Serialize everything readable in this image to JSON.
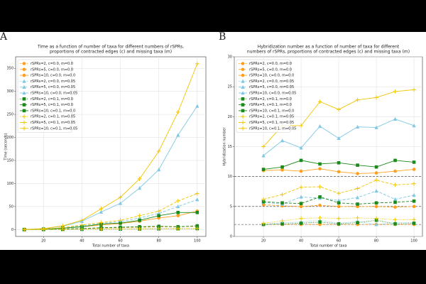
{
  "chart_data": [
    {
      "type": "line",
      "panel_label": "A",
      "title": [
        "Time as a function of number of taxa for different numbers of rSPRs,",
        "proportions of contracted edges (c) and missing taxa (m)"
      ],
      "xlabel": "Total number of taxa",
      "ylabel": "Time (seconds)",
      "x": [
        10,
        20,
        30,
        40,
        50,
        60,
        70,
        80,
        90,
        100
      ],
      "xlim": [
        5.5,
        104.5
      ],
      "xticks": [
        20,
        40,
        60,
        80,
        100
      ],
      "ylim": [
        -15,
        375
      ],
      "yticks": [
        0,
        50,
        100,
        150,
        200,
        250,
        300,
        350
      ],
      "grid": true,
      "legend": "upper left",
      "series": [
        {
          "name": "rSPRs=2, c=0.0, m=0.0",
          "color": "#ff9f1c",
          "marker": "circle",
          "linestyle": "dotted",
          "values": [
            0,
            0,
            0.2,
            0.4,
            0.6,
            0.8,
            1,
            1.2,
            1.4,
            1.6
          ]
        },
        {
          "name": "rSPRs=5, c=0.0, m=0.0",
          "color": "#ff9f1c",
          "marker": "circle",
          "linestyle": "dashed",
          "values": [
            0,
            0.5,
            1,
            2,
            3,
            4,
            5,
            6,
            6,
            7
          ]
        },
        {
          "name": "rSPRs=10, c=0.0, m=0.0",
          "color": "#ff9f1c",
          "marker": "circle",
          "linestyle": "solid",
          "values": [
            0,
            1,
            3,
            6,
            10,
            13,
            18,
            25,
            30,
            40
          ]
        },
        {
          "name": "rSPRs=2, c=0.0, m=0.05",
          "color": "#7ec8e3",
          "marker": "triangle",
          "linestyle": "dotted",
          "values": [
            0,
            0,
            0.3,
            0.5,
            0.8,
            1,
            1.3,
            1.5,
            1.8,
            2
          ]
        },
        {
          "name": "rSPRs=5, c=0.0, m=0.05",
          "color": "#7ec8e3",
          "marker": "triangle",
          "linestyle": "dashed",
          "values": [
            0,
            1,
            3,
            8,
            13,
            17,
            25,
            35,
            50,
            65
          ]
        },
        {
          "name": "rSPRs=10, c=0.0, m=0.05",
          "color": "#7ec8e3",
          "marker": "triangle",
          "linestyle": "solid",
          "values": [
            0,
            2,
            7,
            18,
            38,
            57,
            90,
            130,
            205,
            268
          ]
        },
        {
          "name": "rSPRs=2, c=0.1, m=0.0",
          "color": "#1a8a1a",
          "marker": "square",
          "linestyle": "dotted",
          "values": [
            0,
            0,
            0.3,
            0.5,
            0.8,
            1,
            1.2,
            1.5,
            1.7,
            2
          ]
        },
        {
          "name": "rSPRs=5, c=0.1, m=0.0",
          "color": "#1a8a1a",
          "marker": "square",
          "linestyle": "dashed",
          "values": [
            0,
            0.5,
            1,
            2,
            4,
            5,
            6,
            7,
            6,
            8
          ]
        },
        {
          "name": "rSPRs=10, c=0.1, m=0.0",
          "color": "#1a8a1a",
          "marker": "square",
          "linestyle": "solid",
          "values": [
            0,
            1,
            3,
            6,
            12,
            14,
            20,
            30,
            37,
            37
          ]
        },
        {
          "name": "rSPRs=2, c=0.1, m=0.05",
          "color": "#f2c500",
          "marker": "plus",
          "linestyle": "dotted",
          "values": [
            0,
            0,
            0.4,
            0.6,
            1,
            1.2,
            1.5,
            1.8,
            2,
            2.3
          ]
        },
        {
          "name": "rSPRs=5, c=0.1, m=0.05",
          "color": "#f2c500",
          "marker": "plus",
          "linestyle": "dashed",
          "values": [
            0,
            1,
            4,
            10,
            15,
            20,
            30,
            40,
            62,
            78
          ]
        },
        {
          "name": "rSPRs=10, c=0.1, m=0.05",
          "color": "#f2c500",
          "marker": "plus",
          "linestyle": "solid",
          "values": [
            0,
            2,
            8,
            20,
            45,
            70,
            110,
            170,
            255,
            360
          ]
        }
      ]
    },
    {
      "type": "line",
      "panel_label": "B",
      "title": [
        "Hybridization number as a function of number of taxa for different",
        "numbers of rSPRs, proportions of contracted edges (c) and missing taxa (m)"
      ],
      "xlabel": "Total number of taxa",
      "ylabel": "Hybridization number",
      "x": [
        20,
        30,
        40,
        50,
        60,
        70,
        80,
        90,
        100
      ],
      "xlim": [
        4.5,
        104.5
      ],
      "xticks": [
        20,
        40,
        60,
        80,
        100
      ],
      "ylim": [
        0,
        30
      ],
      "yticks": [
        0,
        5,
        10,
        15,
        20,
        25,
        30
      ],
      "grid": true,
      "legend": "upper left",
      "hlines": [
        2,
        5,
        10
      ],
      "series": [
        {
          "name": "rSPRs=2, c=0.0, m=0.0",
          "color": "#ff9f1c",
          "marker": "circle",
          "linestyle": "dotted",
          "values": [
            2.0,
            2.0,
            2.0,
            2.0,
            2.0,
            2.0,
            2.0,
            2.0,
            2.0
          ]
        },
        {
          "name": "rSPRs=5, c=0.0, m=0.0",
          "color": "#ff9f1c",
          "marker": "circle",
          "linestyle": "dashed",
          "values": [
            5.3,
            5.1,
            5.0,
            5.2,
            5.0,
            5.0,
            5.0,
            4.9,
            5.0
          ]
        },
        {
          "name": "rSPRs=10, c=0.0, m=0.0",
          "color": "#ff9f1c",
          "marker": "circle",
          "linestyle": "solid",
          "values": [
            11.0,
            11.1,
            10.9,
            11.3,
            10.8,
            10.5,
            10.6,
            10.9,
            11.2
          ]
        },
        {
          "name": "rSPRs=2, c=0.0, m=0.05",
          "color": "#7ec8e3",
          "marker": "triangle",
          "linestyle": "dotted",
          "values": [
            2.0,
            2.3,
            2.4,
            2.7,
            2.2,
            2.5,
            2.0,
            2.3,
            2.3
          ]
        },
        {
          "name": "rSPRs=5, c=0.0, m=0.05",
          "color": "#7ec8e3",
          "marker": "triangle",
          "linestyle": "dashed",
          "values": [
            5.7,
            5.4,
            6.6,
            6.4,
            6.0,
            6.5,
            7.6,
            6.2,
            6.9
          ]
        },
        {
          "name": "rSPRs=10, c=0.0, m=0.05",
          "color": "#7ec8e3",
          "marker": "triangle",
          "linestyle": "solid",
          "values": [
            13.5,
            16.0,
            14.8,
            18.4,
            16.4,
            18.3,
            18.2,
            19.6,
            18.5
          ]
        },
        {
          "name": "rSPRs=2, c=0.1, m=0.0",
          "color": "#1a8a1a",
          "marker": "square",
          "linestyle": "dotted",
          "values": [
            2.0,
            2.1,
            2.2,
            2.4,
            2.1,
            2.3,
            2.7,
            2.1,
            2.2
          ]
        },
        {
          "name": "rSPRs=5, c=0.1, m=0.0",
          "color": "#1a8a1a",
          "marker": "square",
          "linestyle": "dashed",
          "values": [
            5.8,
            5.6,
            5.5,
            6.6,
            5.6,
            5.4,
            5.6,
            5.7,
            5.9
          ]
        },
        {
          "name": "rSPRs=10, c=0.1, m=0.0",
          "color": "#1a8a1a",
          "marker": "square",
          "linestyle": "solid",
          "values": [
            11.2,
            11.6,
            12.7,
            12.1,
            12.3,
            11.9,
            11.6,
            12.7,
            12.4
          ]
        },
        {
          "name": "rSPRs=2, c=0.1, m=0.05",
          "color": "#f2c500",
          "marker": "plus",
          "linestyle": "dotted",
          "values": [
            2.2,
            2.6,
            3.0,
            3.1,
            3.0,
            3.1,
            3.0,
            2.8,
            2.8
          ]
        },
        {
          "name": "rSPRs=5, c=0.1, m=0.05",
          "color": "#f2c500",
          "marker": "plus",
          "linestyle": "dashed",
          "values": [
            6.2,
            7.0,
            8.2,
            8.3,
            7.2,
            8.0,
            9.4,
            8.6,
            8.8
          ]
        },
        {
          "name": "rSPRs=10, c=0.1, m=0.05",
          "color": "#f2c500",
          "marker": "plus",
          "linestyle": "solid",
          "values": [
            15.0,
            18.5,
            18.5,
            22.5,
            21.2,
            22.8,
            23.2,
            24.2,
            24.5
          ]
        }
      ]
    }
  ]
}
